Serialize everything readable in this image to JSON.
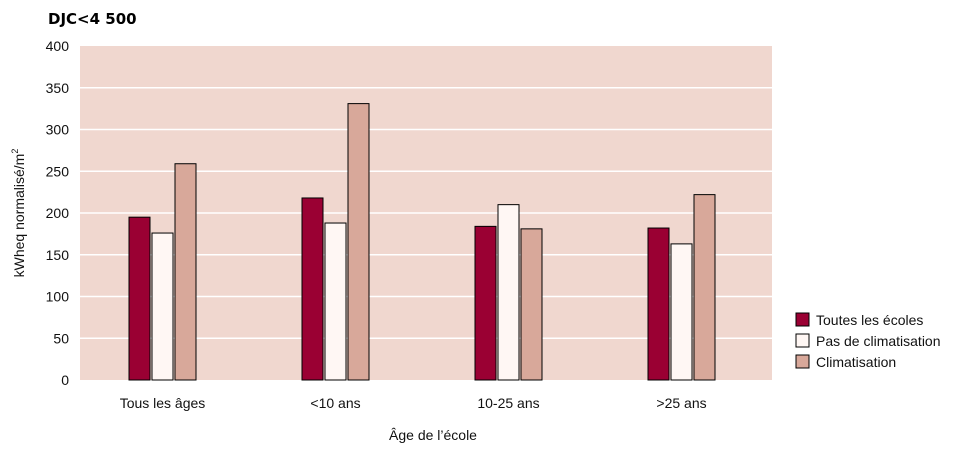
{
  "colors": {
    "plot_bg": "#f0d7cf",
    "gridline": "#ffffff",
    "bar_outline": "#000000"
  },
  "chart_data": {
    "type": "bar",
    "title": "DJC<4 500",
    "xlabel": "Âge de l’école",
    "ylabel": "kWheq normalisé/m",
    "ylabel_superscript": "2",
    "ylim": [
      0,
      400
    ],
    "yticks": [
      0,
      50,
      100,
      150,
      200,
      250,
      300,
      350,
      400
    ],
    "grid": true,
    "legend_position": "right",
    "categories": [
      "Tous les âges",
      "<10 ans",
      "10-25 ans",
      ">25 ans"
    ],
    "series": [
      {
        "name": "Toutes les écoles",
        "color": "#9a0033",
        "values": [
          195,
          218,
          184,
          182
        ]
      },
      {
        "name": "Pas de climatisation",
        "color": "#fff7f4",
        "values": [
          176,
          188,
          210,
          163
        ]
      },
      {
        "name": "Climatisation",
        "color": "#d8a89a",
        "values": [
          259,
          331,
          181,
          222
        ]
      }
    ]
  }
}
